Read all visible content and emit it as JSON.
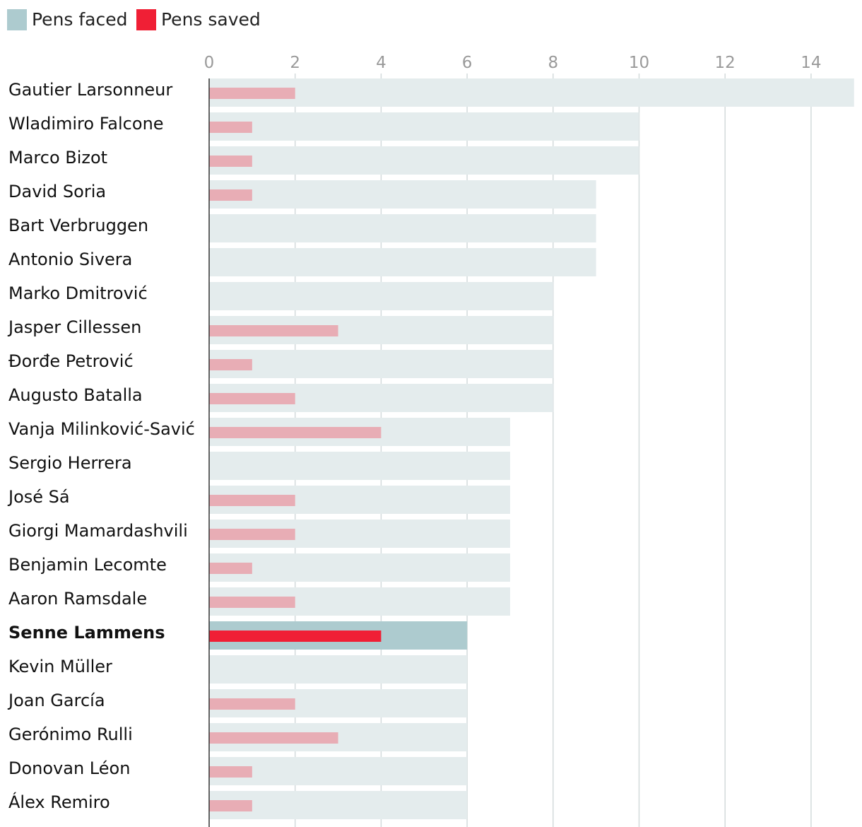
{
  "chart_data": {
    "type": "bar",
    "orientation": "horizontal",
    "legend": [
      {
        "name": "Pens faced",
        "color": "#adcbcf",
        "key": "faced"
      },
      {
        "name": "Pens saved",
        "color": "#f01f35",
        "key": "saved"
      }
    ],
    "legend_position": "top-left",
    "xlim": [
      0,
      15
    ],
    "xticks": [
      0,
      2,
      4,
      6,
      8,
      10,
      12,
      14
    ],
    "grid": true,
    "highlight": "Senne Lammens",
    "colors": {
      "faced": "#e4eced",
      "faced_highlight": "#adcbcf",
      "saved": "#e8adb5",
      "saved_highlight": "#f01f35",
      "grid": "#d3dadb",
      "axis": "#333333"
    },
    "categories": [
      "Gautier Larsonneur",
      "Wladimiro Falcone",
      "Marco Bizot",
      "David Soria",
      "Bart Verbruggen",
      "Antonio Sivera",
      "Marko Dmitrović",
      "Jasper Cillessen",
      "Đorđe Petrović",
      "Augusto Batalla",
      "Vanja Milinković-Savić",
      "Sergio Herrera",
      "José Sá",
      "Giorgi Mamardashvili",
      "Benjamin Lecomte",
      "Aaron Ramsdale",
      "Senne Lammens",
      "Kevin Müller",
      "Joan García",
      "Gerónimo Rulli",
      "Donovan Léon",
      "Álex Remiro"
    ],
    "series": [
      {
        "name": "Pens faced",
        "values": [
          15,
          10,
          10,
          9,
          9,
          9,
          8,
          8,
          8,
          8,
          7,
          7,
          7,
          7,
          7,
          7,
          6,
          6,
          6,
          6,
          6,
          6
        ]
      },
      {
        "name": "Pens saved",
        "values": [
          2,
          1,
          1,
          1,
          0,
          0,
          0,
          3,
          1,
          2,
          4,
          0,
          2,
          2,
          1,
          2,
          4,
          0,
          2,
          3,
          1,
          1
        ]
      }
    ]
  }
}
